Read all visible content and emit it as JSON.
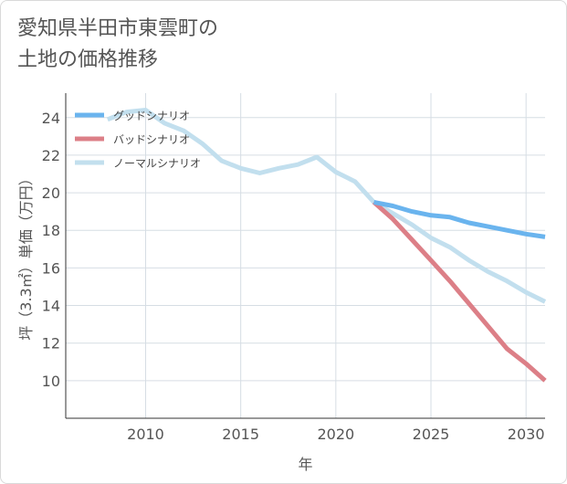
{
  "title_lines": [
    "愛知県半田市東雲町の",
    "土地の価格推移"
  ],
  "chart_data": {
    "type": "line",
    "title": "愛知県半田市東雲町の土地の価格推移",
    "xlabel": "年",
    "ylabel": "坪（3.3㎡）単価（万円）",
    "xlim": [
      2005.8,
      2031
    ],
    "ylim": [
      8,
      25.3
    ],
    "x_ticks": [
      2010,
      2015,
      2020,
      2025,
      2030
    ],
    "y_ticks": [
      10,
      12,
      14,
      16,
      18,
      20,
      22,
      24
    ],
    "grid": true,
    "legend_position": "top-left",
    "series": [
      {
        "name": "グッドシナリオ",
        "color": "#6ab4ee",
        "x": [
          2022,
          2023,
          2024,
          2025,
          2026,
          2027,
          2028,
          2029,
          2030,
          2031
        ],
        "y": [
          19.5,
          19.3,
          19.0,
          18.8,
          18.7,
          18.4,
          18.2,
          18.0,
          17.8,
          17.65
        ]
      },
      {
        "name": "バッドシナリオ",
        "color": "#dc7f87",
        "x": [
          2022,
          2023,
          2024,
          2025,
          2026,
          2027,
          2028,
          2029,
          2030,
          2031
        ],
        "y": [
          19.5,
          18.6,
          17.5,
          16.4,
          15.3,
          14.1,
          12.9,
          11.7,
          10.9,
          10.0
        ]
      },
      {
        "name": "ノーマルシナリオ",
        "color": "#c2dfee",
        "x": [
          2008,
          2009,
          2010,
          2011,
          2012,
          2013,
          2014,
          2015,
          2016,
          2017,
          2018,
          2019,
          2020,
          2021,
          2022,
          2023,
          2024,
          2025,
          2026,
          2027,
          2028,
          2029,
          2030,
          2031
        ],
        "y": [
          23.9,
          24.3,
          24.4,
          23.7,
          23.3,
          22.6,
          21.7,
          21.3,
          21.05,
          21.3,
          21.5,
          21.9,
          21.1,
          20.6,
          19.5,
          18.9,
          18.3,
          17.6,
          17.1,
          16.4,
          15.8,
          15.3,
          14.7,
          14.2
        ]
      }
    ]
  }
}
